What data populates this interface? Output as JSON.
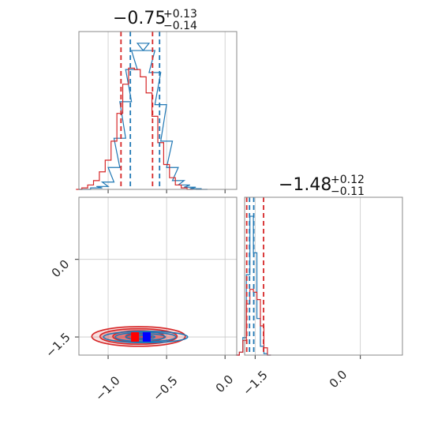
{
  "colors": {
    "series_a": "#1f77b4",
    "series_b": "#d62728",
    "grid": "#c8c8c8",
    "frame": "#888888",
    "marker_a": "#0000ff",
    "marker_b": "#ff0000"
  },
  "chart_data": [
    {
      "panel": "marginal-1",
      "type": "area",
      "title": {
        "value": "−0.75",
        "upper": "+0.13",
        "lower": "−0.14"
      },
      "xlim": [
        -1.25,
        0.1
      ],
      "xticks": [
        -1.0,
        -0.5,
        0.0
      ],
      "grid": true,
      "series": [
        {
          "color_key": "series_a",
          "x": [
            -1.2,
            -1.1,
            -1.05,
            -1.0,
            -0.95,
            -0.9,
            -0.85,
            -0.8,
            -0.75,
            -0.7,
            -0.65,
            -0.6,
            -0.55,
            -0.5,
            -0.45,
            -0.4,
            -0.35,
            -0.3,
            -0.25,
            -0.2
          ],
          "values": [
            0,
            0.01,
            0.02,
            0.05,
            0.15,
            0.35,
            0.6,
            0.82,
            0.95,
            1.0,
            0.95,
            0.8,
            0.58,
            0.33,
            0.15,
            0.06,
            0.03,
            0.015,
            0.005,
            0
          ]
        },
        {
          "color_key": "series_b",
          "x": [
            -1.25,
            -1.2,
            -1.15,
            -1.1,
            -1.05,
            -1.0,
            -0.95,
            -0.9,
            -0.85,
            -0.8,
            -0.75,
            -0.7,
            -0.65,
            -0.6,
            -0.55,
            -0.5,
            -0.45,
            -0.4,
            -0.35,
            -0.3
          ],
          "values": [
            0,
            0.01,
            0.03,
            0.06,
            0.12,
            0.2,
            0.33,
            0.52,
            0.72,
            0.83,
            0.82,
            0.77,
            0.66,
            0.5,
            0.32,
            0.17,
            0.08,
            0.03,
            0.01,
            0
          ]
        }
      ],
      "quantiles": {
        "series_a": [
          -0.81,
          -0.56
        ],
        "series_b": [
          -0.89,
          -0.62
        ]
      }
    },
    {
      "panel": "marginal-2",
      "type": "area",
      "title": {
        "value": "−1.48",
        "upper": "+0.12",
        "lower": "−0.11"
      },
      "xlim": [
        -1.65,
        0.6
      ],
      "xticks": [
        -1.5,
        0.0
      ],
      "grid": true,
      "series": [
        {
          "color_key": "series_a",
          "x": [
            -1.75,
            -1.7,
            -1.65,
            -1.6,
            -1.55,
            -1.5,
            -1.45,
            -1.4,
            -1.35,
            -1.3
          ],
          "values": [
            0,
            0.02,
            0.12,
            0.55,
            0.95,
            0.7,
            0.25,
            0.06,
            0.01,
            0
          ]
        },
        {
          "color_key": "series_b",
          "x": [
            -1.75,
            -1.7,
            -1.65,
            -1.6,
            -1.55,
            -1.5,
            -1.45,
            -1.4,
            -1.35,
            -1.3
          ],
          "values": [
            0,
            0.02,
            0.1,
            0.35,
            0.45,
            0.43,
            0.38,
            0.2,
            0.05,
            0
          ]
        }
      ],
      "quantiles": {
        "series_a": [
          -1.58,
          -1.52
        ],
        "series_b": [
          -1.62,
          -1.38
        ]
      }
    },
    {
      "panel": "joint",
      "type": "scatter",
      "xlim": [
        -1.25,
        0.1
      ],
      "ylim": [
        -1.85,
        1.2
      ],
      "xticks": [
        -1.0,
        -0.5,
        0.0
      ],
      "yticks": [
        -1.5,
        0.0
      ],
      "grid": true,
      "contours": {
        "series_a": {
          "center": [
            -0.68,
            -1.5
          ],
          "radii": [
            [
              0.08,
              0.03
            ],
            [
              0.17,
              0.06
            ],
            [
              0.26,
              0.09
            ],
            [
              0.36,
              0.11
            ]
          ]
        },
        "series_b": {
          "center": [
            -0.74,
            -1.49
          ],
          "radii": [
            [
              0.11,
              0.06
            ],
            [
              0.22,
              0.11
            ],
            [
              0.33,
              0.15
            ],
            [
              0.4,
              0.19
            ]
          ]
        }
      },
      "markers": {
        "series_a": [
          -0.67,
          -1.5
        ],
        "series_b": [
          -0.77,
          -1.5
        ]
      }
    }
  ],
  "tick_labels": {
    "bottom_left": [
      "−1.0",
      "−0.5",
      "0.0"
    ],
    "bottom_right": [
      "−1.5",
      "0.0"
    ],
    "left": [
      "0.0",
      "−1.5"
    ]
  }
}
